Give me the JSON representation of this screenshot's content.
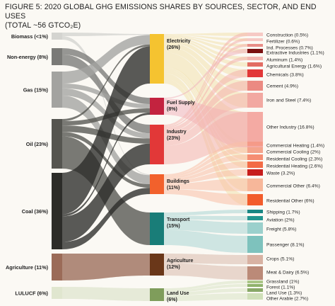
{
  "figure": {
    "title_line1": "FIGURE 5: 2020 GLOBAL GHG EMISSIONS SHARES BY SOURCES, SECTOR, AND END USES",
    "title_line2": "(TOTAL ~56 GTCO₂E)"
  },
  "chart_data": {
    "type": "sankey",
    "title": "FIGURE 5: 2020 GLOBAL GHG EMISSIONS SHARES BY SOURCES, SECTOR, AND END USES (TOTAL ~56 GTCO₂E)",
    "unit": "%",
    "sources": [
      {
        "id": "biomass",
        "label": "Biomass (<1%)",
        "value": 1,
        "color": "#d4d4d0"
      },
      {
        "id": "nonenergy",
        "label": "Non-energy (8%)",
        "value": 8,
        "color": "#7a7a77"
      },
      {
        "id": "gas",
        "label": "Gas (15%)",
        "value": 15,
        "color": "#a3a3a0"
      },
      {
        "id": "oil",
        "label": "Oil (23%)",
        "value": 23,
        "color": "#555550"
      },
      {
        "id": "coal",
        "label": "Coal (36%)",
        "value": 36,
        "color": "#2c2c29"
      },
      {
        "id": "agri",
        "label": "Agriculture (11%)",
        "value": 11,
        "color": "#9b6b58"
      },
      {
        "id": "luluc",
        "label": "LULUCF (6%)",
        "value": 6,
        "color": "#e0e6cf"
      }
    ],
    "sectors": [
      {
        "id": "electricity",
        "label": "Electricity",
        "pct": "(26%)",
        "value": 26,
        "color": "#f5c330",
        "tint": "#f3e2ad"
      },
      {
        "id": "fuel",
        "label": "Fuel Supply",
        "pct": "(8%)",
        "value": 8,
        "color": "#c3233f",
        "tint": "#f0b4bd"
      },
      {
        "id": "industry",
        "label": "Industry",
        "pct": "(23%)",
        "value": 23,
        "color": "#e23838",
        "tint": "#f4b2ad"
      },
      {
        "id": "buildings",
        "label": "Buildings",
        "pct": "(11%)",
        "value": 11,
        "color": "#f2612c",
        "tint": "#f9c0a6"
      },
      {
        "id": "transport",
        "label": "Transport",
        "pct": "(15%)",
        "value": 15,
        "color": "#197d78",
        "tint": "#a9d6d3"
      },
      {
        "id": "agriculture",
        "label": "Agriculture",
        "pct": "(12%)",
        "value": 12,
        "color": "#6a3719",
        "tint": "#d8b9ab"
      },
      {
        "id": "landuse",
        "label": "Land Use",
        "pct": "(6%)",
        "value": 6,
        "color": "#7f9d5b",
        "tint": "#d9e4c4"
      }
    ],
    "flows_source_to_sector": [
      {
        "from": "biomass",
        "to": "electricity",
        "value": 0.5
      },
      {
        "from": "biomass",
        "to": "buildings",
        "value": 0.5
      },
      {
        "from": "nonenergy",
        "to": "industry",
        "value": 5
      },
      {
        "from": "nonenergy",
        "to": "fuel",
        "value": 3
      },
      {
        "from": "gas",
        "to": "electricity",
        "value": 5
      },
      {
        "from": "gas",
        "to": "fuel",
        "value": 2
      },
      {
        "from": "gas",
        "to": "industry",
        "value": 3
      },
      {
        "from": "gas",
        "to": "buildings",
        "value": 5
      },
      {
        "from": "oil",
        "to": "electricity",
        "value": 1
      },
      {
        "from": "oil",
        "to": "fuel",
        "value": 2
      },
      {
        "from": "oil",
        "to": "industry",
        "value": 3
      },
      {
        "from": "oil",
        "to": "buildings",
        "value": 2
      },
      {
        "from": "oil",
        "to": "transport",
        "value": 15
      },
      {
        "from": "coal",
        "to": "electricity",
        "value": 19.5
      },
      {
        "from": "coal",
        "to": "fuel",
        "value": 1
      },
      {
        "from": "coal",
        "to": "industry",
        "value": 12
      },
      {
        "from": "coal",
        "to": "buildings",
        "value": 3.5
      },
      {
        "from": "agri",
        "to": "agriculture",
        "value": 11
      },
      {
        "from": "luluc",
        "to": "landuse",
        "value": 6
      }
    ],
    "end_uses": [
      {
        "label": "Construction (0.5%)",
        "value": 0.5
      },
      {
        "label": "Fertilizer (0.6%)",
        "value": 0.6
      },
      {
        "label": "Ind. Processes (0.7%)",
        "value": 0.7
      },
      {
        "label": "Extractive Industries (1.1%)",
        "value": 1.1
      },
      {
        "label": "Aluminum (1.4%)",
        "value": 1.4
      },
      {
        "label": "Agricultural Energy (1.6%)",
        "value": 1.6
      },
      {
        "label": "Chemicals (3.8%)",
        "value": 3.8
      },
      {
        "label": "Cement (4.9%)",
        "value": 4.9
      },
      {
        "label": "Iron and Steel (7.4%)",
        "value": 7.4
      },
      {
        "label": "Other Industry (16.8%)",
        "value": 16.8
      },
      {
        "label": "Commercial Heating (1.4%)",
        "value": 1.4
      },
      {
        "label": "Commercial Cooling (2%)",
        "value": 2
      },
      {
        "label": "Residential Cooling (2.3%)",
        "value": 2.3
      },
      {
        "label": "Residential Heating (2.6%)",
        "value": 2.6
      },
      {
        "label": "Waste (3.2%)",
        "value": 3.2
      },
      {
        "label": "Commercial Other (6.4%)",
        "value": 6.4
      },
      {
        "label": "Residential Other (6%)",
        "value": 6
      },
      {
        "label": "Shipping (1.7%)",
        "value": 1.7
      },
      {
        "label": "Aviation (2%)",
        "value": 2
      },
      {
        "label": "Freight (5.8%)",
        "value": 5.8
      },
      {
        "label": "Passenger (8.1%)",
        "value": 8.1
      },
      {
        "label": "Crops (5.1%)",
        "value": 5.1
      },
      {
        "label": "Meat & Dairy (6.5%)",
        "value": 6.5
      },
      {
        "label": "Grassland (1%)",
        "value": 1
      },
      {
        "label": "Forest (1.1%)",
        "value": 1.1
      },
      {
        "label": "Land Use (1.3%)",
        "value": 1.3
      },
      {
        "label": "Other Arable (2.7%)",
        "value": 2.7
      }
    ],
    "end_use_bar_colors": [
      "#f6c9c4",
      "#f6c9c4",
      "#e88d87",
      "#7a1010",
      "#f3b6b0",
      "#e26d63",
      "#e23838",
      "#eb8a82",
      "#f2a8a1",
      "#f4aaa3",
      "#f59a88",
      "#f4a48c",
      "#f58e73",
      "#f36b46",
      "#c71d1d",
      "#f7b79a",
      "#f25c2c",
      "#198683",
      "#23958f",
      "#9bd0cc",
      "#7ec2bd",
      "#d8b2a3",
      "#bb8a78",
      "#aac687",
      "#8fb26b",
      "#88a867",
      "#cfdfb8"
    ],
    "flows_sector_to_enduse": [
      {
        "from": "electricity",
        "to": [
          0,
          1,
          2,
          3,
          4,
          5,
          6,
          7,
          8,
          9,
          10,
          11,
          12,
          13,
          15,
          16
        ]
      },
      {
        "from": "fuel",
        "to": [
          3,
          9
        ]
      },
      {
        "from": "industry",
        "to": [
          0,
          1,
          2,
          4,
          6,
          7,
          8,
          9
        ]
      },
      {
        "from": "buildings",
        "to": [
          10,
          11,
          12,
          13,
          14,
          15,
          16
        ]
      },
      {
        "from": "transport",
        "to": [
          17,
          18,
          19,
          20
        ]
      },
      {
        "from": "agriculture",
        "to": [
          21,
          22
        ]
      },
      {
        "from": "landuse",
        "to": [
          23,
          24,
          25,
          26
        ]
      }
    ]
  }
}
